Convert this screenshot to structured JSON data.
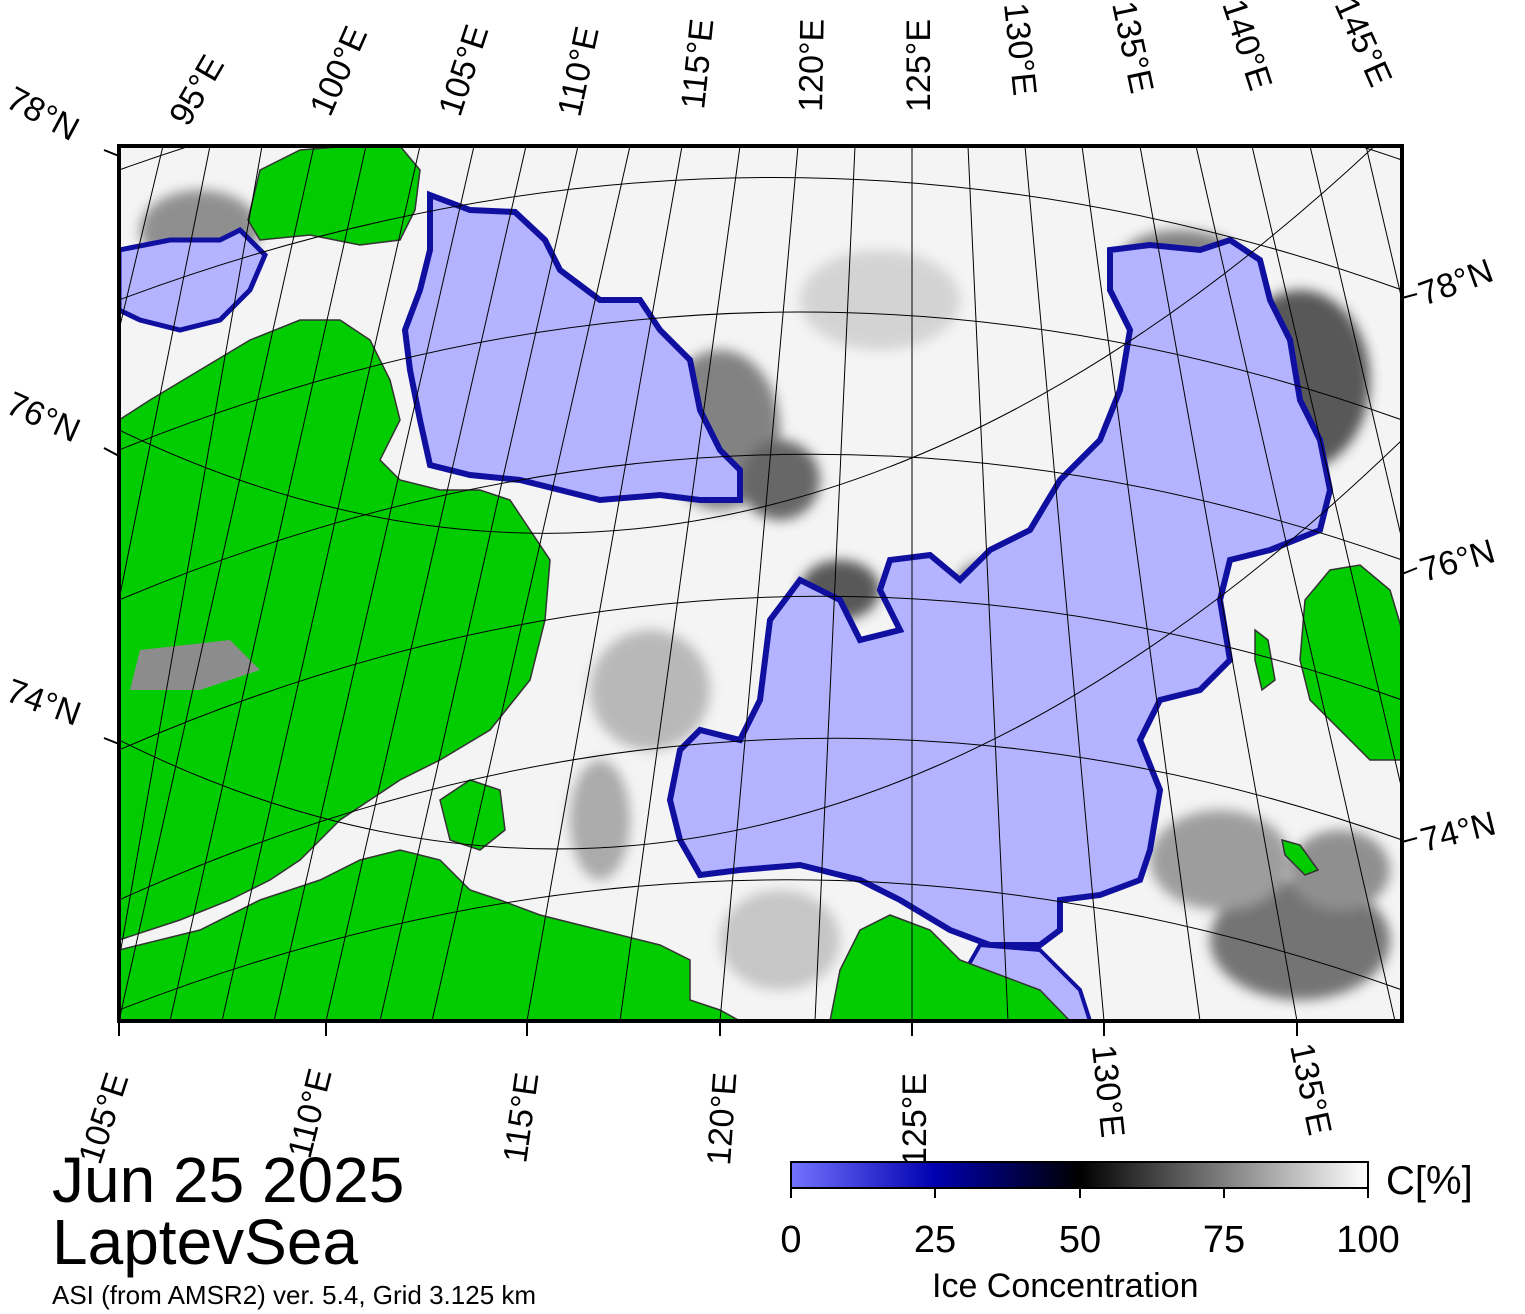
{
  "map": {
    "date": "Jun 25 2025",
    "region": "LaptevSea",
    "product": "ASI (from AMSR2) ver. 5.4,  Grid 3.125 km",
    "top_lon_labels": [
      "95°E",
      "100°E",
      "105°E",
      "110°E",
      "115°E",
      "120°E",
      "125°E",
      "130°E",
      "135°E",
      "140°E",
      "145°E"
    ],
    "bottom_lon_labels": [
      "105°E",
      "110°E",
      "115°E",
      "120°E",
      "125°E",
      "130°E",
      "135°E"
    ],
    "left_lat_labels": [
      "78°N",
      "76°N",
      "74°N"
    ],
    "right_lat_labels": [
      "78°N",
      "76°N",
      "74°N"
    ],
    "colors": {
      "land": "#00cc00",
      "open_water": "#b3b3ff",
      "ice_high": "#ffffff",
      "ice_mid": "#000000",
      "ice_low": "#0000b0",
      "land_ice": "#8c8c8c"
    }
  },
  "colorbar": {
    "title": "Ice Concentration",
    "unit": "C[%]",
    "ticks": [
      "0",
      "25",
      "50",
      "75",
      "100"
    ],
    "tick_values": [
      0,
      25,
      50,
      75,
      100
    ]
  }
}
